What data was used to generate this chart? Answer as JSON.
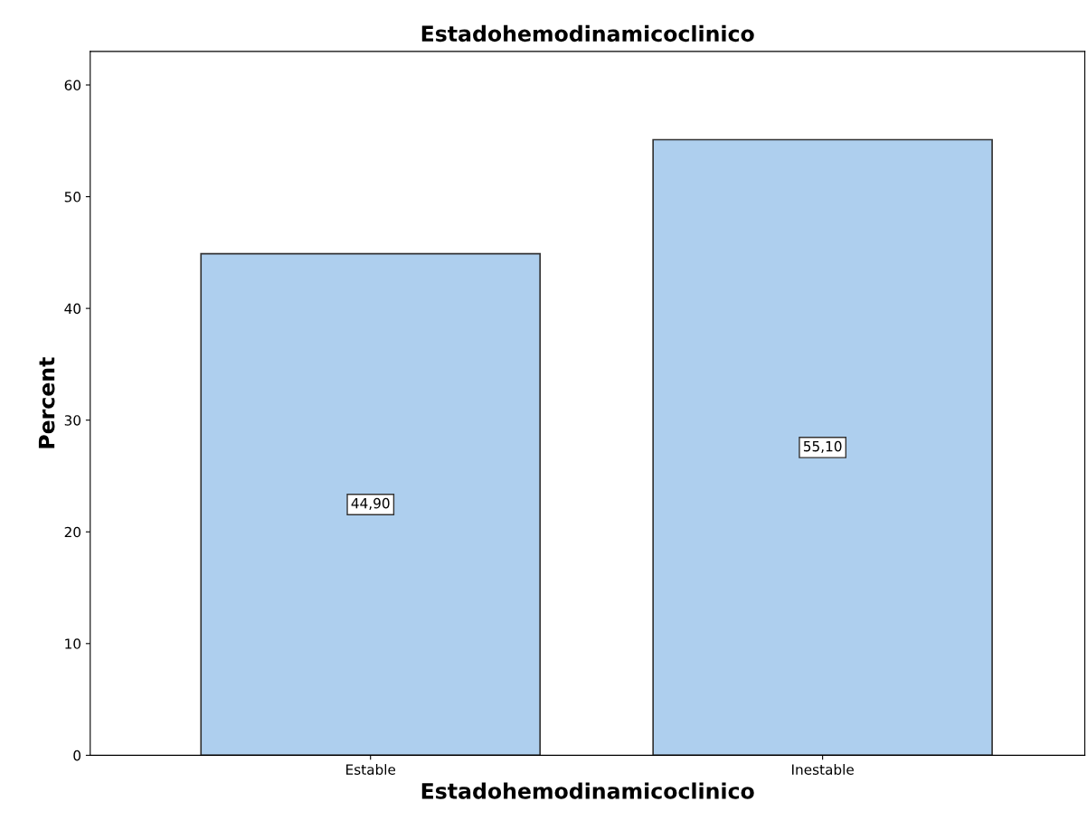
{
  "chart_data": {
    "type": "bar",
    "title": "Estadohemodinamicoclinico",
    "xlabel": "Estadohemodinamicoclinico",
    "ylabel": "Percent",
    "categories": [
      "Estable",
      "Inestable"
    ],
    "values": [
      44.9,
      55.1
    ],
    "value_labels": [
      "44,90",
      "55,10"
    ],
    "color": "#aecfee",
    "ylim": [
      0,
      63
    ],
    "yticks": [
      0,
      10,
      20,
      30,
      40,
      50,
      60
    ],
    "grid": false,
    "legend": false
  }
}
